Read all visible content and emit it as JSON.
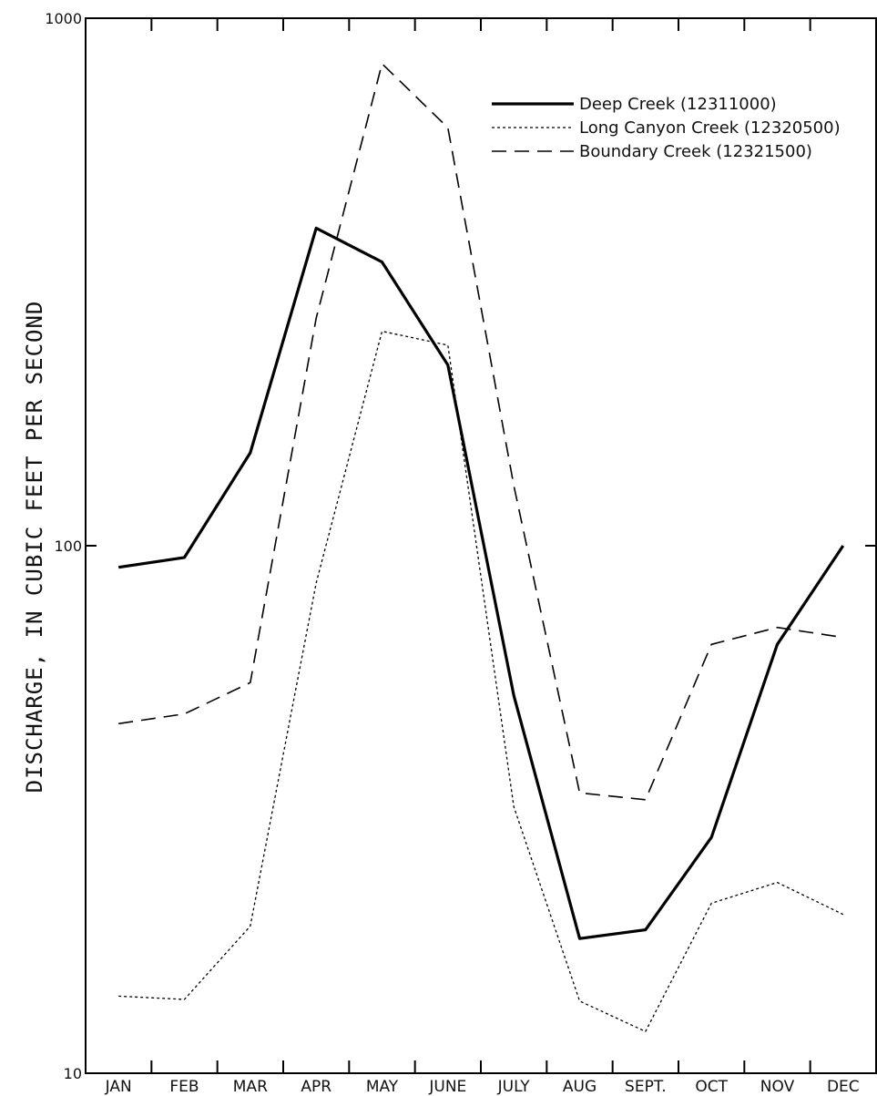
{
  "chart_data": {
    "type": "line",
    "ylabel": "DISCHARGE, IN CUBIC FEET PER SECOND",
    "y_scale": "log",
    "ylim": [
      10,
      1000
    ],
    "y_ticks": [
      {
        "value": 10,
        "label": "10"
      },
      {
        "value": 100,
        "label": "100"
      },
      {
        "value": 1000,
        "label": "1000"
      }
    ],
    "categories": [
      "JAN",
      "FEB",
      "MAR",
      "APR",
      "MAY",
      "JUNE",
      "JULY",
      "AUG",
      "SEPT.",
      "OCT",
      "NOV",
      "DEC"
    ],
    "legend_position": "top-right",
    "grid": false,
    "series": [
      {
        "name": "Deep Creek (12311000)",
        "style": "solid",
        "color": "#000000",
        "values": [
          91,
          95,
          150,
          400,
          345,
          220,
          52,
          18,
          18.7,
          28,
          65,
          100
        ]
      },
      {
        "name": "Long Canyon Creek (12320500)",
        "style": "dotted",
        "color": "#000000",
        "values": [
          14,
          13.8,
          19,
          85,
          255,
          240,
          32,
          13.7,
          12,
          21,
          23,
          20
        ]
      },
      {
        "name": "Boundary Creek (12321500)",
        "style": "dashed",
        "color": "#000000",
        "values": [
          46,
          48,
          55,
          270,
          820,
          620,
          130,
          34,
          33,
          65,
          70,
          67
        ]
      }
    ]
  }
}
